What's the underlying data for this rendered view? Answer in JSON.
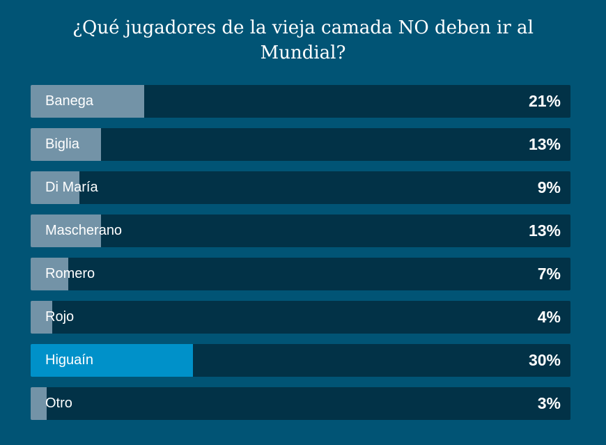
{
  "chart_data": {
    "type": "bar",
    "orientation": "horizontal",
    "title": "¿Qué jugadores de la vieja camada NO deben ir al Mundial?",
    "categories": [
      "Banega",
      "Biglia",
      "Di María",
      "Mascherano",
      "Romero",
      "Rojo",
      "Higuaín",
      "Otro"
    ],
    "values": [
      21,
      13,
      9,
      13,
      7,
      4,
      30,
      3
    ],
    "value_labels": [
      "21%",
      "13%",
      "9%",
      "13%",
      "7%",
      "4%",
      "30%",
      "3%"
    ],
    "highlighted": "Higuaín",
    "xlim": [
      0,
      100
    ],
    "colors": {
      "background": "#015475",
      "track": "#023247",
      "fill": "#7393a7",
      "highlight": "#0091c9"
    }
  }
}
